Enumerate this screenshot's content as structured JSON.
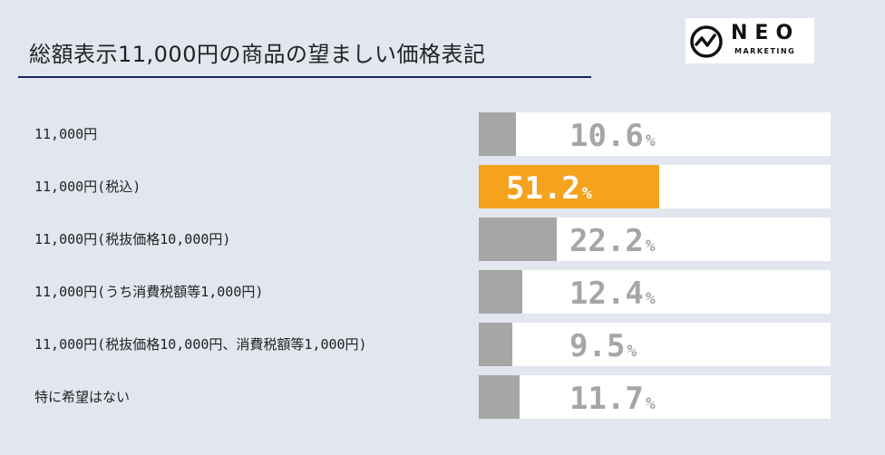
{
  "title": "総額表示11,000円の商品の望ましい価格表記",
  "logo": {
    "word": "NEO",
    "sub": "MARKETING"
  },
  "colors": {
    "bar": "#a6a6a6",
    "highlight": "#f5a21d",
    "rule": "#17275c",
    "background": "#e1e6ef"
  },
  "chart_data": {
    "type": "bar",
    "orientation": "horizontal",
    "title": "総額表示11,000円の商品の望ましい価格表記",
    "unit": "%",
    "xlim": [
      0,
      100
    ],
    "grid": false,
    "categories": [
      "11,000円",
      "11,000円(税込)",
      "11,000円(税抜価格10,000円)",
      "11,000円(うち消費税額等1,000円)",
      "11,000円(税抜価格10,000円、消費税額等1,000円)",
      "特に希望はない"
    ],
    "values": [
      10.6,
      51.2,
      22.2,
      12.4,
      9.5,
      11.7
    ],
    "value_labels": [
      "10.6",
      "51.2",
      "22.2",
      "12.4",
      "9.5",
      "11.7"
    ],
    "highlight_index": 1
  }
}
